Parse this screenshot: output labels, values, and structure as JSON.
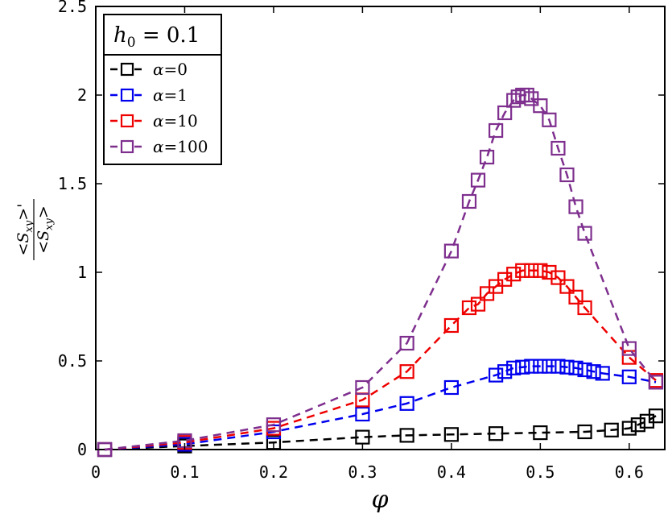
{
  "chart_data": {
    "type": "line",
    "title": "",
    "xlabel": "φ",
    "ylabel": "<S_xy>' / <S_xy>",
    "ylabel_numerator": "<S",
    "ylabel_numerator_sub": "xy",
    "ylabel_numerator_tail": ">'",
    "ylabel_denominator": "<S",
    "ylabel_denominator_sub": "xy",
    "ylabel_denominator_tail": ">",
    "xlim": [
      0,
      0.64
    ],
    "ylim": [
      0,
      2.5
    ],
    "xticks": [
      0,
      0.1,
      0.2,
      0.3,
      0.4,
      0.5,
      0.6
    ],
    "xtick_labels": [
      "0",
      "0.1",
      "0.2",
      "0.3",
      "0.4",
      "0.5",
      "0.6"
    ],
    "yticks": [
      0,
      0.5,
      1,
      1.5,
      2,
      2.5
    ],
    "ytick_labels": [
      "0",
      "0.5",
      "1",
      "1.5",
      "2",
      "2.5"
    ],
    "grid": false,
    "legend_title": "h0 = 0.1",
    "legend_title_var": "h",
    "legend_title_sub": "0",
    "legend_title_rest": " = 0.1",
    "legend_position": "top-left",
    "series": [
      {
        "name": "α=0",
        "legend_var": "α",
        "legend_rest": "=0",
        "color": "#000000",
        "x": [
          0.01,
          0.1,
          0.2,
          0.3,
          0.35,
          0.4,
          0.45,
          0.5,
          0.55,
          0.58,
          0.6,
          0.61,
          0.62,
          0.63
        ],
        "y": [
          0.0,
          0.02,
          0.04,
          0.07,
          0.08,
          0.085,
          0.09,
          0.095,
          0.1,
          0.11,
          0.12,
          0.14,
          0.16,
          0.19
        ]
      },
      {
        "name": "α=1",
        "legend_var": "α",
        "legend_rest": "=1",
        "color": "#0000ee",
        "x": [
          0.01,
          0.1,
          0.2,
          0.3,
          0.35,
          0.4,
          0.45,
          0.46,
          0.47,
          0.48,
          0.49,
          0.5,
          0.51,
          0.52,
          0.53,
          0.54,
          0.55,
          0.56,
          0.57,
          0.6,
          0.63
        ],
        "y": [
          0.0,
          0.03,
          0.1,
          0.2,
          0.26,
          0.35,
          0.42,
          0.44,
          0.46,
          0.465,
          0.47,
          0.47,
          0.47,
          0.47,
          0.465,
          0.46,
          0.45,
          0.44,
          0.43,
          0.41,
          0.38
        ]
      },
      {
        "name": "α=10",
        "legend_var": "α",
        "legend_rest": "=10",
        "color": "#ee0000",
        "x": [
          0.01,
          0.1,
          0.2,
          0.3,
          0.35,
          0.4,
          0.42,
          0.43,
          0.44,
          0.45,
          0.46,
          0.47,
          0.48,
          0.49,
          0.5,
          0.51,
          0.52,
          0.53,
          0.54,
          0.55,
          0.6,
          0.63
        ],
        "y": [
          0.0,
          0.04,
          0.12,
          0.28,
          0.44,
          0.7,
          0.8,
          0.82,
          0.88,
          0.92,
          0.96,
          0.99,
          1.01,
          1.01,
          1.01,
          1.0,
          0.97,
          0.92,
          0.86,
          0.8,
          0.52,
          0.39
        ]
      },
      {
        "name": "α=100",
        "legend_var": "α",
        "legend_rest": "=100",
        "color": "#7e2f8e",
        "x": [
          0.01,
          0.1,
          0.2,
          0.3,
          0.35,
          0.4,
          0.42,
          0.43,
          0.44,
          0.45,
          0.46,
          0.47,
          0.475,
          0.48,
          0.485,
          0.49,
          0.5,
          0.51,
          0.52,
          0.53,
          0.54,
          0.55,
          0.6,
          0.63
        ],
        "y": [
          0.0,
          0.05,
          0.14,
          0.35,
          0.6,
          1.12,
          1.4,
          1.52,
          1.65,
          1.8,
          1.9,
          1.97,
          1.99,
          2.0,
          2.0,
          1.98,
          1.94,
          1.86,
          1.7,
          1.55,
          1.37,
          1.22,
          0.57,
          0.38
        ]
      }
    ]
  }
}
